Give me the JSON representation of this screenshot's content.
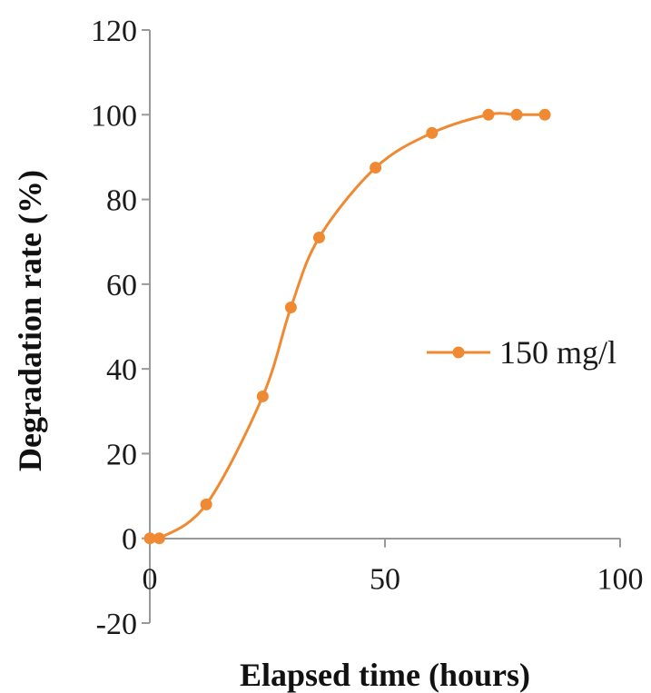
{
  "chart_data": {
    "type": "line",
    "title": "",
    "xlabel": "Elapsed time (hours)",
    "ylabel": "Degradation rate (%)",
    "xlim": [
      0,
      100
    ],
    "ylim": [
      -20,
      120
    ],
    "x_ticks": [
      "0",
      "50",
      "100"
    ],
    "y_ticks": [
      "-20",
      "0",
      "20",
      "40",
      "60",
      "80",
      "100",
      "120"
    ],
    "x_tick_values": [
      0,
      50,
      100
    ],
    "y_tick_values": [
      -20,
      0,
      20,
      40,
      60,
      80,
      100,
      120
    ],
    "grid": false,
    "smooth": true,
    "legend_position": "right",
    "series": [
      {
        "name": "150 mg/l",
        "color": "#f08a32",
        "marker": "circle",
        "x": [
          0,
          2,
          12,
          24,
          30,
          36,
          48,
          60,
          72,
          78,
          84
        ],
        "y": [
          0,
          0,
          8,
          33.5,
          54.5,
          71,
          87.5,
          95.7,
          100,
          100,
          100
        ]
      }
    ]
  }
}
